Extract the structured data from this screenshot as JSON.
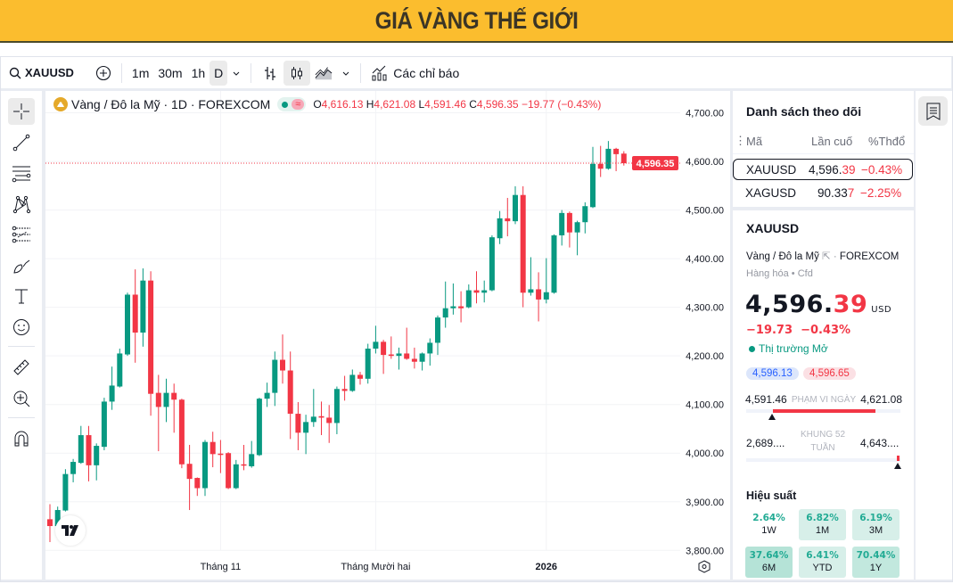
{
  "banner": {
    "title": "GIÁ VÀNG THẾ GIỚI"
  },
  "toolbar": {
    "symbol": "XAUUSD",
    "intervals": [
      "1m",
      "30m",
      "1h",
      "D"
    ],
    "active_interval": "D",
    "indicators_label": "Các chỉ báo"
  },
  "legend": {
    "title": "Vàng / Đô la Mỹ · 1D · FOREXCOM",
    "o_key": "O",
    "o": "4,616.13",
    "h_key": "H",
    "h": "4,621.08",
    "l_key": "L",
    "l": "4,591.46",
    "c_key": "C",
    "c": "4,596.35",
    "change": "−19.77 (−0.43%)"
  },
  "colors": {
    "up": "#089981",
    "down": "#f23645",
    "banner": "#fbbd2e",
    "perf_text": "#22ab94"
  },
  "chart_data": {
    "type": "candlestick",
    "ylim": [
      3740,
      4745
    ],
    "y_ticks": [
      "4,700.00",
      "4,600.00",
      "4,500.00",
      "4,400.00",
      "4,300.00",
      "4,200.00",
      "4,100.00",
      "4,000.00",
      "3,900.00",
      "3,800.00"
    ],
    "y_tick_values": [
      4700,
      4600,
      4500,
      4400,
      4300,
      4200,
      4100,
      4000,
      3900,
      3800
    ],
    "x_ticks": [
      {
        "label": "Tháng 11",
        "candle": 22
      },
      {
        "label": "Tháng Mười hai",
        "candle": 42
      },
      {
        "label": "2026",
        "candle": 64
      }
    ],
    "last_price_label": "4,596.35",
    "last_price": 4596.35,
    "ohlc": [
      [
        3864,
        3895,
        3817,
        3850
      ],
      [
        3850,
        3890,
        3837,
        3883
      ],
      [
        3882,
        3967,
        3880,
        3957
      ],
      [
        3957,
        3988,
        3940,
        3982
      ],
      [
        3980,
        4056,
        3978,
        4037
      ],
      [
        4037,
        4056,
        3942,
        3975
      ],
      [
        3975,
        4020,
        3944,
        4015
      ],
      [
        4013,
        4114,
        4006,
        4106
      ],
      [
        4106,
        4178,
        4089,
        4139
      ],
      [
        4137,
        4215,
        4135,
        4205
      ],
      [
        4203,
        4330,
        4200,
        4326
      ],
      [
        4326,
        4378,
        4186,
        4248
      ],
      [
        4248,
        4380,
        4219,
        4355
      ],
      [
        4355,
        4374,
        4077,
        4122
      ],
      [
        4124,
        4161,
        4004,
        4095
      ],
      [
        4095,
        4153,
        4064,
        4124
      ],
      [
        4124,
        4143,
        4042,
        4110
      ],
      [
        4110,
        4112,
        3969,
        3977
      ],
      [
        3978,
        4017,
        3883,
        3947
      ],
      [
        3949,
        3950,
        3912,
        3928
      ],
      [
        3928,
        4027,
        3912,
        4023
      ],
      [
        4023,
        4044,
        3971,
        3998
      ],
      [
        3999,
        4027,
        3959,
        3997
      ],
      [
        4000,
        4002,
        3926,
        3928
      ],
      [
        3928,
        3986,
        3926,
        3977
      ],
      [
        3977,
        4017,
        3965,
        3975
      ],
      [
        3973,
        4025,
        3970,
        3998
      ],
      [
        3996,
        4114,
        3994,
        4112
      ],
      [
        4112,
        4145,
        4095,
        4124
      ],
      [
        4124,
        4209,
        4097,
        4192
      ],
      [
        4192,
        4244,
        4143,
        4170
      ],
      [
        4170,
        4209,
        4029,
        4081
      ],
      [
        4081,
        4105,
        4006,
        4042
      ],
      [
        4042,
        4079,
        3998,
        4064
      ],
      [
        4064,
        4132,
        4054,
        4075
      ],
      [
        4076,
        4106,
        4037,
        4073
      ],
      [
        4073,
        4099,
        4021,
        4062
      ],
      [
        4062,
        4137,
        4039,
        4132
      ],
      [
        4132,
        4159,
        4108,
        4128
      ],
      [
        4128,
        4172,
        4126,
        4161
      ],
      [
        4161,
        4167,
        4141,
        4153
      ],
      [
        4153,
        4225,
        4143,
        4215
      ],
      [
        4215,
        4262,
        4205,
        4229
      ],
      [
        4229,
        4233,
        4163,
        4202
      ],
      [
        4203,
        4240,
        4194,
        4200
      ],
      [
        4200,
        4217,
        4172,
        4205
      ],
      [
        4205,
        4258,
        4192,
        4194
      ],
      [
        4194,
        4217,
        4174,
        4188
      ],
      [
        4188,
        4207,
        4170,
        4205
      ],
      [
        4205,
        4236,
        4180,
        4227
      ],
      [
        4227,
        4283,
        4202,
        4279
      ],
      [
        4279,
        4353,
        4258,
        4298
      ],
      [
        4298,
        4349,
        4285,
        4302
      ],
      [
        4302,
        4333,
        4269,
        4298
      ],
      [
        4300,
        4347,
        4298,
        4335
      ],
      [
        4335,
        4374,
        4308,
        4330
      ],
      [
        4330,
        4355,
        4310,
        4335
      ],
      [
        4335,
        4448,
        4333,
        4444
      ],
      [
        4442,
        4498,
        4430,
        4483
      ],
      [
        4483,
        4525,
        4446,
        4477
      ],
      [
        4477,
        4549,
        4471,
        4531
      ],
      [
        4531,
        4549,
        4300,
        4330
      ],
      [
        4330,
        4403,
        4324,
        4337
      ],
      [
        4337,
        4372,
        4271,
        4316
      ],
      [
        4316,
        4401,
        4308,
        4331
      ],
      [
        4330,
        4450,
        4328,
        4448
      ],
      [
        4448,
        4500,
        4427,
        4494
      ],
      [
        4494,
        4497,
        4423,
        4454
      ],
      [
        4454,
        4478,
        4407,
        4475
      ],
      [
        4475,
        4516,
        4452,
        4508
      ],
      [
        4506,
        4630,
        4504,
        4595
      ],
      [
        4595,
        4632,
        4568,
        4585
      ],
      [
        4585,
        4642,
        4583,
        4626
      ],
      [
        4626,
        4628,
        4580,
        4615
      ],
      [
        4616.13,
        4621.08,
        4591.46,
        4596.35
      ]
    ]
  },
  "watchlist": {
    "title": "Danh sách theo dõi",
    "columns": [
      "Mã",
      "Lần cuố",
      "%Thđổ"
    ],
    "rows": [
      {
        "symbol": "XAUUSD",
        "last_main": "4,596.",
        "last_tail": "39",
        "change": "−0.43%"
      },
      {
        "symbol": "XAGUSD",
        "last_main": "90.33",
        "last_tail": "7",
        "change": "−2.25%"
      }
    ]
  },
  "details": {
    "symbol": "XAUUSD",
    "name": "Vàng / Đô la Mỹ",
    "exchange": "FOREXCOM",
    "category": "Hàng hóa",
    "type": "Cfd",
    "price_main": "4,596.",
    "price_tail": "39",
    "currency": "USD",
    "change": "−19.73",
    "change_pct": "−0.43%",
    "market_status": "Thị trường Mở",
    "bid": "4,596.13",
    "ask": "4,596.65",
    "day_low": "4,591.46",
    "day_range_label": "PHẠM VI NGÀY",
    "day_high": "4,621.08",
    "week52_low": "2,689....",
    "week52_label": "KHUNG 52 TUẦN",
    "week52_high": "4,643....",
    "performance_title": "Hiệu suất",
    "performance": [
      {
        "value": "2.64%",
        "period": "1W"
      },
      {
        "value": "6.82%",
        "period": "1M"
      },
      {
        "value": "6.19%",
        "period": "3M"
      },
      {
        "value": "37.64%",
        "period": "6M"
      },
      {
        "value": "6.41%",
        "period": "YTD"
      },
      {
        "value": "70.44%",
        "period": "1Y"
      }
    ]
  }
}
